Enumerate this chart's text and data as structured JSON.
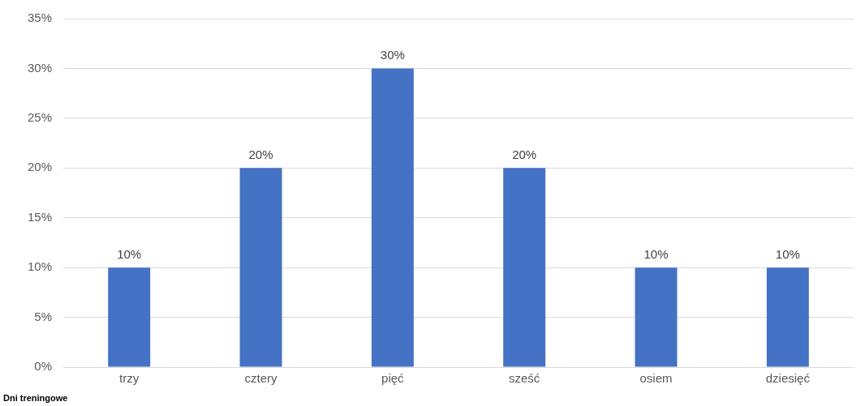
{
  "chart_data": {
    "type": "bar",
    "xlabel": "Dni treningowe",
    "categories": [
      "trzy",
      "cztery",
      "pięć",
      "sześć",
      "osiem",
      "dziesięć"
    ],
    "values": [
      10,
      20,
      30,
      20,
      10,
      10
    ],
    "value_labels": [
      "10%",
      "20%",
      "30%",
      "20%",
      "10%",
      "10%"
    ],
    "color": "#4472c4",
    "ylim": [
      0,
      35
    ],
    "yticks": [
      {
        "value": 0,
        "label": "0%"
      },
      {
        "value": 5,
        "label": "5%"
      },
      {
        "value": 10,
        "label": "10%"
      },
      {
        "value": 15,
        "label": "15%"
      },
      {
        "value": 20,
        "label": "20%"
      },
      {
        "value": 25,
        "label": "25%"
      },
      {
        "value": 30,
        "label": "30%"
      },
      {
        "value": 35,
        "label": "35%"
      }
    ],
    "grid": "y",
    "legend": false
  }
}
